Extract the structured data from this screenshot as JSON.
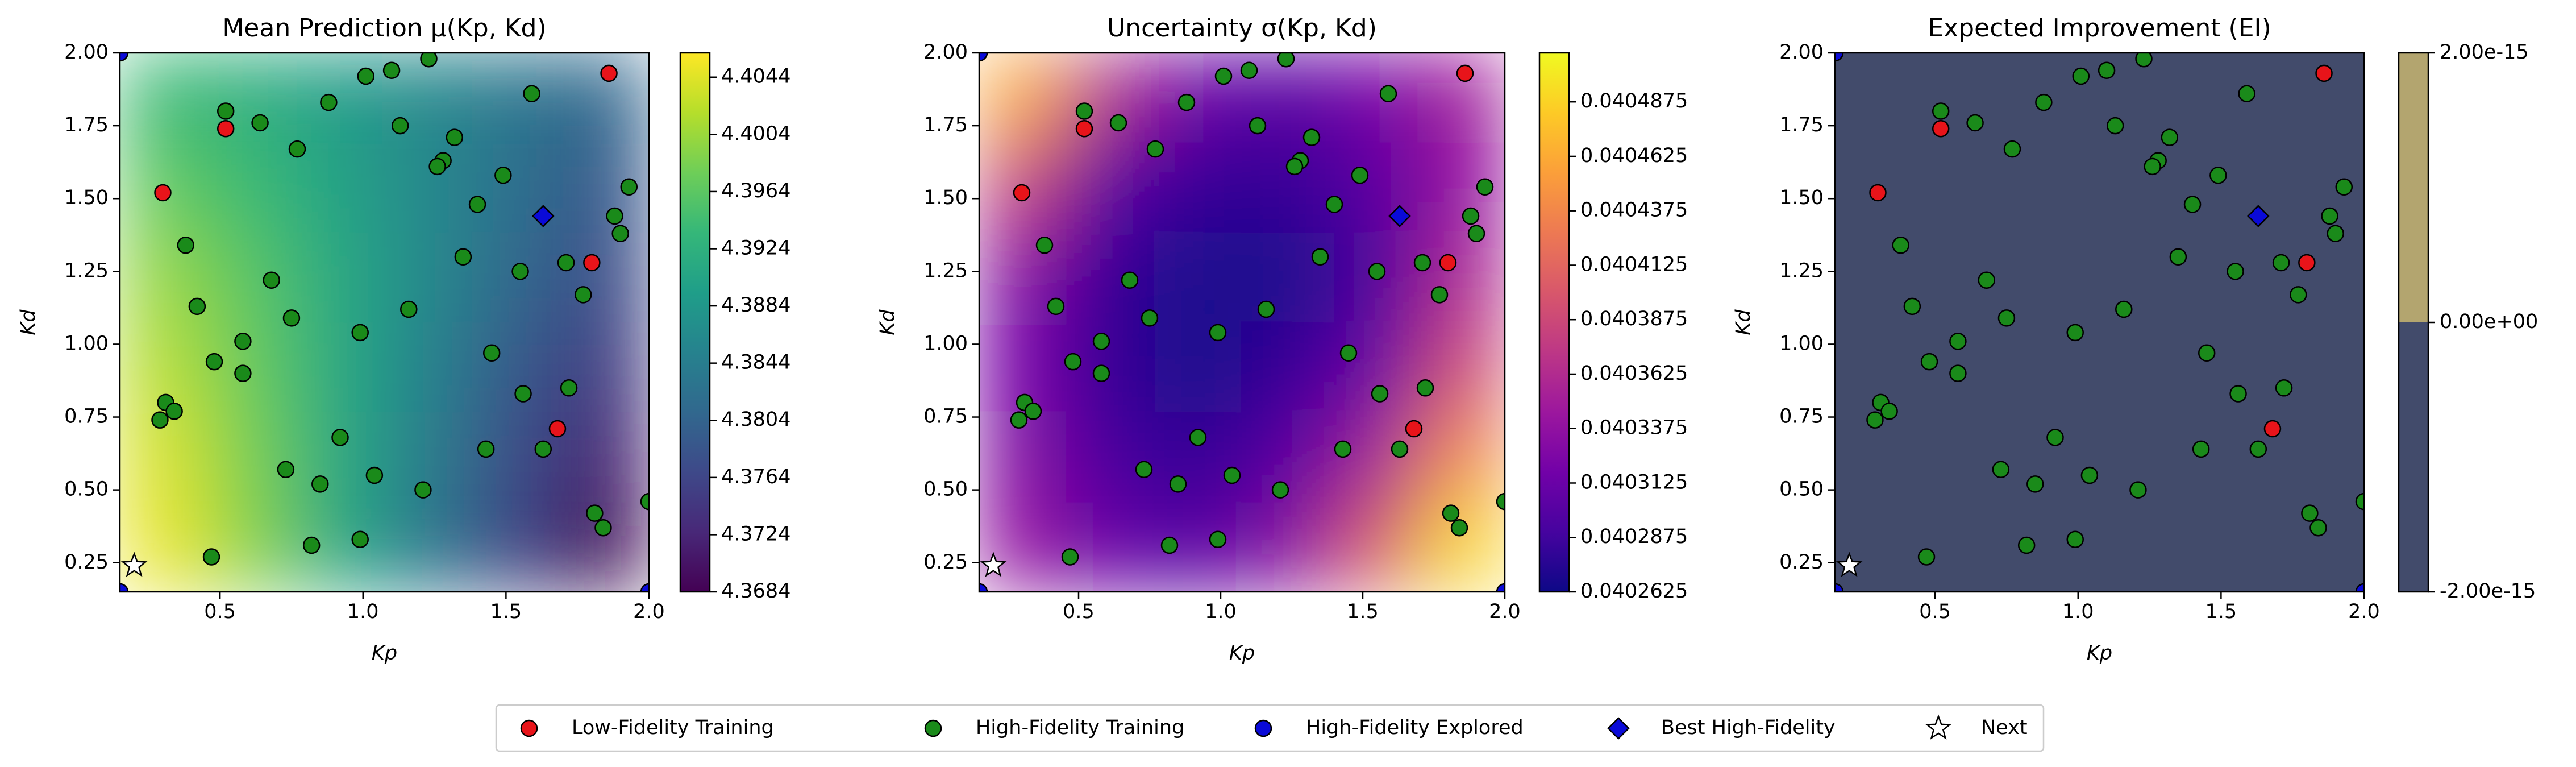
{
  "chart_data": [
    {
      "type": "heatmap",
      "title": "Mean Prediction μ(Kp, Kd)",
      "xlabel": "Kp",
      "ylabel": "Kd",
      "xlim": [
        0.15,
        2.0
      ],
      "ylim": [
        0.15,
        2.0
      ],
      "xticks": [
        0.5,
        {
          "value": 1.0,
          "label": "1.0"
        },
        1.5,
        {
          "value": 2.0,
          "label": "2.0"
        }
      ],
      "yticks": [
        0.25,
        {
          "value": 0.5,
          "label": "0.50"
        },
        0.75,
        {
          "value": 1.0,
          "label": "1.00"
        },
        1.25,
        {
          "value": 1.5,
          "label": "1.50"
        },
        1.75,
        {
          "value": 2.0,
          "label": "2.00"
        }
      ],
      "colormap": "viridis",
      "clim": [
        4.3684,
        4.4061
      ],
      "cticks": [
        4.3684,
        4.3724,
        4.3764,
        4.3804,
        4.3844,
        4.3884,
        4.3924,
        4.3964,
        4.4004,
        4.4044
      ],
      "field": [
        [
          4.394,
          4.392,
          4.389,
          4.386,
          4.383,
          4.381
        ],
        [
          4.397,
          4.394,
          4.39,
          4.386,
          4.382,
          4.379
        ],
        [
          4.4,
          4.396,
          4.391,
          4.386,
          4.381,
          4.377
        ],
        [
          4.402,
          4.397,
          4.391,
          4.385,
          4.379,
          4.375
        ],
        [
          4.404,
          4.398,
          4.391,
          4.384,
          4.377,
          4.372
        ],
        [
          4.405,
          4.399,
          4.391,
          4.383,
          4.376,
          4.369
        ]
      ],
      "series": [
        {
          "name": "Low-Fidelity Training",
          "color": "#e8141a",
          "marker": "circle",
          "x": [
            1.86,
            0.52,
            0.3,
            1.8,
            1.68
          ],
          "y": [
            1.93,
            1.74,
            1.52,
            1.28,
            0.71
          ]
        },
        {
          "name": "High-Fidelity Training",
          "color": "#1a8a1a",
          "marker": "circle",
          "x": [
            1.23,
            1.1,
            1.01,
            0.88,
            0.52,
            0.64,
            1.13,
            1.32,
            0.77,
            1.28,
            1.26,
            1.59,
            1.49,
            1.4,
            1.93,
            1.88,
            1.9,
            0.38,
            1.35,
            1.71,
            1.55,
            0.68,
            1.77,
            0.42,
            1.16,
            0.75,
            0.99,
            0.58,
            1.45,
            0.48,
            0.58,
            1.56,
            1.72,
            0.31,
            0.34,
            0.29,
            0.92,
            1.63,
            1.43,
            0.73,
            1.04,
            0.85,
            1.21,
            1.81,
            1.84,
            2.0,
            0.99,
            0.82,
            0.47
          ],
          "y": [
            1.98,
            1.94,
            1.92,
            1.83,
            1.8,
            1.76,
            1.75,
            1.71,
            1.67,
            1.63,
            1.61,
            1.86,
            1.58,
            1.48,
            1.54,
            1.44,
            1.38,
            1.34,
            1.3,
            1.28,
            1.25,
            1.22,
            1.17,
            1.13,
            1.12,
            1.09,
            1.04,
            1.01,
            0.97,
            0.94,
            0.9,
            0.83,
            0.85,
            0.8,
            0.77,
            0.74,
            0.68,
            0.64,
            0.64,
            0.57,
            0.55,
            0.52,
            0.5,
            0.42,
            0.37,
            0.46,
            0.33,
            0.31,
            0.27
          ]
        },
        {
          "name": "High-Fidelity Explored",
          "color": "#0a0ad8",
          "marker": "circle",
          "x": [
            0.15,
            0.15,
            2.0
          ],
          "y": [
            2.0,
            0.15,
            0.15
          ]
        },
        {
          "name": "Best High-Fidelity",
          "color": "#0a0ad8",
          "marker": "diamond",
          "x": [
            1.63
          ],
          "y": [
            1.44
          ]
        },
        {
          "name": "Next",
          "color": "#ffffff",
          "marker": "star",
          "x": [
            0.2
          ],
          "y": [
            0.24
          ]
        }
      ]
    },
    {
      "type": "heatmap",
      "title": "Uncertainty σ(Kp, Kd)",
      "xlabel": "Kp",
      "ylabel": "Kd",
      "xlim": [
        0.15,
        2.0
      ],
      "ylim": [
        0.15,
        2.0
      ],
      "xticks": [
        0.5,
        {
          "value": 1.0,
          "label": "1.0"
        },
        1.5,
        {
          "value": 2.0,
          "label": "2.0"
        }
      ],
      "yticks": [
        0.25,
        {
          "value": 0.5,
          "label": "0.50"
        },
        0.75,
        {
          "value": 1.0,
          "label": "1.00"
        },
        1.25,
        {
          "value": 1.5,
          "label": "1.50"
        },
        1.75,
        {
          "value": 2.0,
          "label": "2.00"
        }
      ],
      "colormap": "plasma",
      "clim": [
        0.0402625,
        0.04051
      ],
      "cticks": [
        0.0402625,
        0.0402875,
        0.0403125,
        0.0403375,
        0.0403625,
        0.0403875,
        0.0404125,
        0.0404375,
        0.0404625,
        0.0404875
      ],
      "field": [
        [
          0.04046,
          0.04036,
          0.04031,
          0.0403,
          0.04032,
          0.04035
        ],
        [
          0.04038,
          0.0403,
          0.04028,
          0.04028,
          0.0403,
          0.04034
        ],
        [
          0.04033,
          0.04028,
          0.04027,
          0.04027,
          0.04029,
          0.04036
        ],
        [
          0.04032,
          0.04028,
          0.04027,
          0.04028,
          0.04031,
          0.04039
        ],
        [
          0.04033,
          0.04029,
          0.04028,
          0.0403,
          0.04035,
          0.04044
        ],
        [
          0.04034,
          0.04031,
          0.0403,
          0.04033,
          0.0404,
          0.04049
        ]
      ]
    },
    {
      "type": "heatmap",
      "title": "Expected Improvement (EI)",
      "xlabel": "Kp",
      "ylabel": "Kd",
      "xlim": [
        0.15,
        2.0
      ],
      "ylim": [
        0.15,
        2.0
      ],
      "xticks": [
        0.5,
        {
          "value": 1.0,
          "label": "1.0"
        },
        1.5,
        {
          "value": 2.0,
          "label": "2.0"
        }
      ],
      "yticks": [
        0.25,
        {
          "value": 0.5,
          "label": "0.50"
        },
        0.75,
        {
          "value": 1.0,
          "label": "1.00"
        },
        1.25,
        {
          "value": 1.5,
          "label": "1.50"
        },
        1.75,
        {
          "value": 2.0,
          "label": "2.00"
        }
      ],
      "colormap": "levels",
      "level_colors": [
        "#424b6b",
        "#b3a56f"
      ],
      "clim": [
        -2e-15,
        2e-15
      ],
      "cticks": [
        {
          "value": -2e-15,
          "label": "-2.00e-15"
        },
        {
          "value": 0,
          "label": "0.00e+00"
        },
        {
          "value": 2e-15,
          "label": "2.00e-15"
        }
      ],
      "field": [
        [
          0
        ]
      ]
    }
  ]
}
